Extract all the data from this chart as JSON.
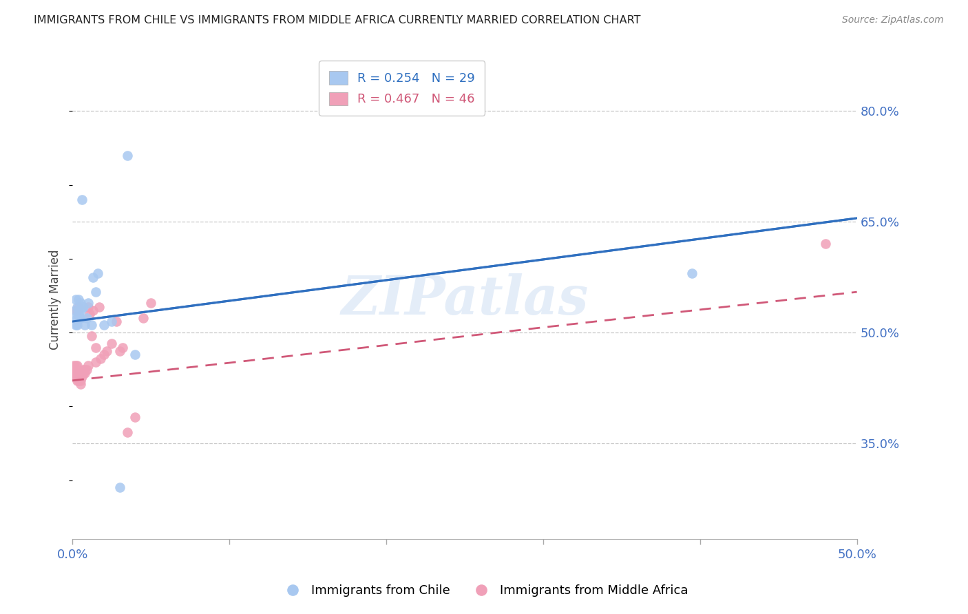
{
  "title": "IMMIGRANTS FROM CHILE VS IMMIGRANTS FROM MIDDLE AFRICA CURRENTLY MARRIED CORRELATION CHART",
  "source": "Source: ZipAtlas.com",
  "ylabel": "Currently Married",
  "xlim": [
    0.0,
    0.5
  ],
  "ylim": [
    0.22,
    0.87
  ],
  "xticks": [
    0.0,
    0.1,
    0.2,
    0.3,
    0.4,
    0.5
  ],
  "xtick_labels": [
    "0.0%",
    "",
    "",
    "",
    "",
    "50.0%"
  ],
  "ytick_labels_right": [
    "80.0%",
    "65.0%",
    "50.0%",
    "35.0%"
  ],
  "ytick_positions_right": [
    0.8,
    0.65,
    0.5,
    0.35
  ],
  "grid_color": "#c8c8c8",
  "background_color": "#ffffff",
  "series_chile": {
    "color": "#a8c8f0",
    "R": 0.254,
    "N": 29,
    "trend_color": "#3070c0",
    "trend_x0": 0.0,
    "trend_y0": 0.515,
    "trend_x1": 0.5,
    "trend_y1": 0.655,
    "x": [
      0.001,
      0.002,
      0.002,
      0.003,
      0.003,
      0.004,
      0.004,
      0.005,
      0.005,
      0.005,
      0.006,
      0.007,
      0.008,
      0.009,
      0.01,
      0.012,
      0.013,
      0.015,
      0.02,
      0.025,
      0.03,
      0.035,
      0.04,
      0.002,
      0.003,
      0.004,
      0.006,
      0.395,
      0.016
    ],
    "y": [
      0.52,
      0.53,
      0.545,
      0.52,
      0.535,
      0.545,
      0.53,
      0.52,
      0.53,
      0.54,
      0.535,
      0.535,
      0.51,
      0.52,
      0.54,
      0.51,
      0.575,
      0.555,
      0.51,
      0.515,
      0.29,
      0.74,
      0.47,
      0.51,
      0.51,
      0.525,
      0.68,
      0.58,
      0.58
    ]
  },
  "series_middle_africa": {
    "color": "#f0a0b8",
    "R": 0.467,
    "N": 46,
    "trend_color": "#d05878",
    "trend_x0": 0.0,
    "trend_y0": 0.435,
    "trend_x1": 0.5,
    "trend_y1": 0.555,
    "x": [
      0.001,
      0.001,
      0.001,
      0.002,
      0.002,
      0.002,
      0.003,
      0.003,
      0.003,
      0.003,
      0.004,
      0.004,
      0.004,
      0.005,
      0.005,
      0.005,
      0.006,
      0.006,
      0.007,
      0.007,
      0.008,
      0.008,
      0.009,
      0.01,
      0.01,
      0.011,
      0.012,
      0.013,
      0.015,
      0.015,
      0.017,
      0.018,
      0.02,
      0.022,
      0.025,
      0.028,
      0.03,
      0.032,
      0.035,
      0.04,
      0.045,
      0.05,
      0.002,
      0.003,
      0.004,
      0.48
    ],
    "y": [
      0.44,
      0.445,
      0.455,
      0.44,
      0.445,
      0.455,
      0.435,
      0.44,
      0.445,
      0.455,
      0.435,
      0.44,
      0.445,
      0.43,
      0.435,
      0.445,
      0.44,
      0.445,
      0.445,
      0.45,
      0.445,
      0.45,
      0.45,
      0.455,
      0.535,
      0.525,
      0.495,
      0.53,
      0.46,
      0.48,
      0.535,
      0.465,
      0.47,
      0.475,
      0.485,
      0.515,
      0.475,
      0.48,
      0.365,
      0.385,
      0.52,
      0.54,
      0.53,
      0.53,
      0.535,
      0.62
    ]
  },
  "watermark": "ZIPatlas",
  "axis_label_color": "#4472c4",
  "title_color": "#222222",
  "source_color": "#888888"
}
